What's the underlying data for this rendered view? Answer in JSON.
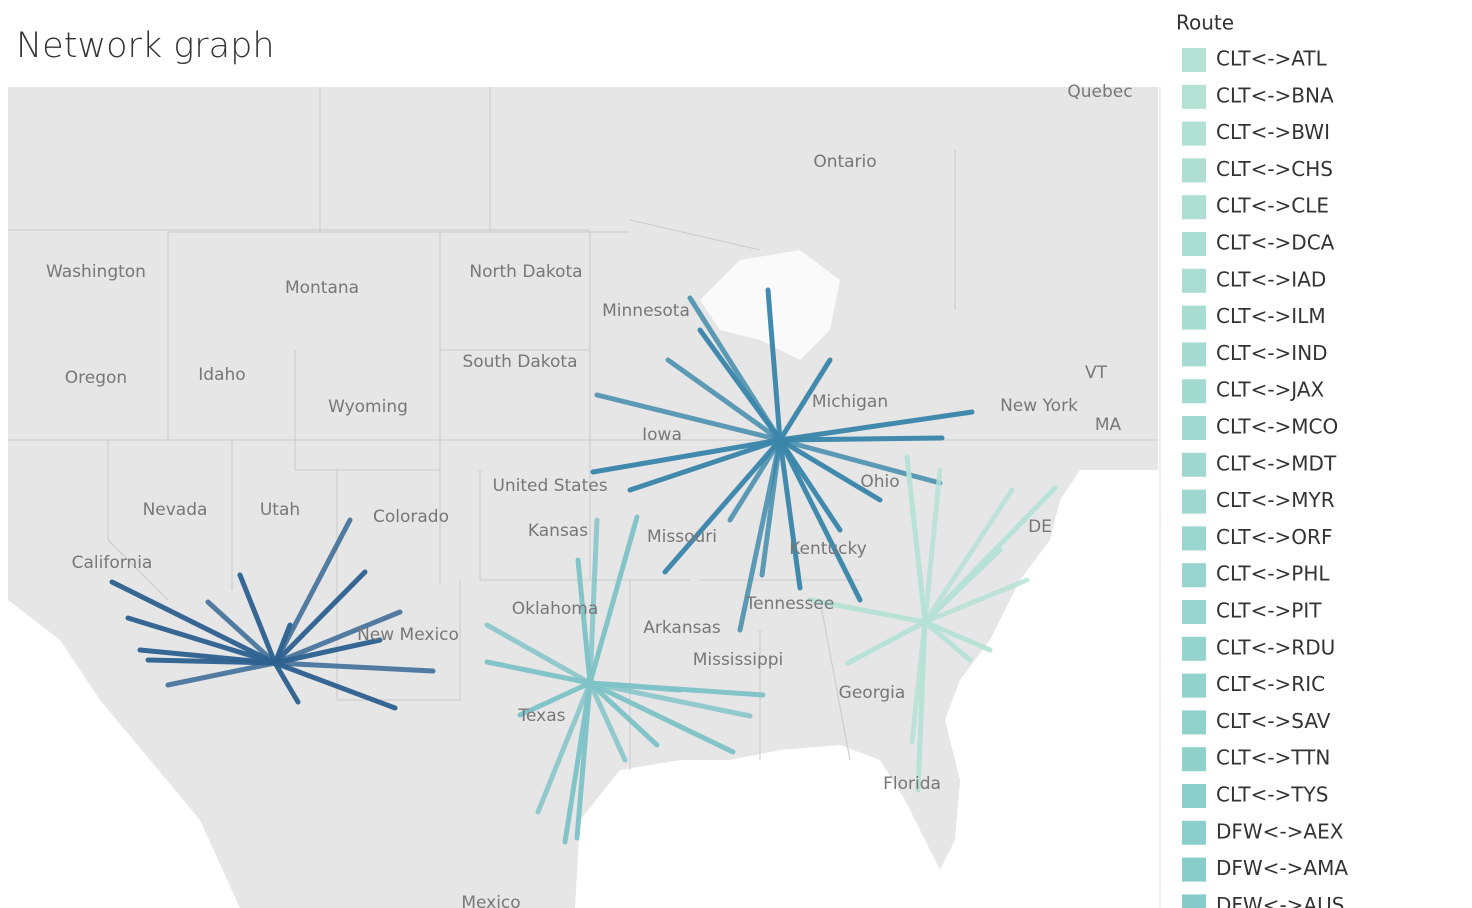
{
  "header": {
    "title": "Network graph"
  },
  "map": {
    "labels": [
      "Quebec",
      "Ontario",
      "Washington",
      "Montana",
      "North Dakota",
      "Minnesota",
      "South Dakota",
      "Oregon",
      "Idaho",
      "Wyoming",
      "Iowa",
      "United States",
      "Nevada",
      "Utah",
      "Colorado",
      "Kansas",
      "California",
      "Missouri",
      "Oklahoma",
      "Arkansas",
      "Mississippi",
      "New Mexico",
      "Texas",
      "Georgia",
      "Florida",
      "New York",
      "VT",
      "MA",
      "DE",
      "Michigan",
      "Ohio",
      "Tennessee",
      "Kentucky",
      "Mexico"
    ]
  },
  "legend": {
    "title": "Route",
    "items": [
      {
        "label": "CLT<->ATL",
        "color": "#b5e2d5"
      },
      {
        "label": "CLT<->BNA",
        "color": "#b3e1d4"
      },
      {
        "label": "CLT<->BWI",
        "color": "#b1e0d4"
      },
      {
        "label": "CLT<->CHS",
        "color": "#afdfd3"
      },
      {
        "label": "CLT<->CLE",
        "color": "#addfd3"
      },
      {
        "label": "CLT<->DCA",
        "color": "#abded2"
      },
      {
        "label": "CLT<->IAD",
        "color": "#a9ddd2"
      },
      {
        "label": "CLT<->ILM",
        "color": "#a7dcd1"
      },
      {
        "label": "CLT<->IND",
        "color": "#a5dbd1"
      },
      {
        "label": "CLT<->JAX",
        "color": "#a3dad0"
      },
      {
        "label": "CLT<->MCO",
        "color": "#a1d9d0"
      },
      {
        "label": "CLT<->MDT",
        "color": "#9fd8cf"
      },
      {
        "label": "CLT<->MYR",
        "color": "#9dd7cf"
      },
      {
        "label": "CLT<->ORF",
        "color": "#9bd6ce"
      },
      {
        "label": "CLT<->PHL",
        "color": "#99d5ce"
      },
      {
        "label": "CLT<->PIT",
        "color": "#97d4cd"
      },
      {
        "label": "CLT<->RDU",
        "color": "#95d3cd"
      },
      {
        "label": "CLT<->RIC",
        "color": "#93d2cc"
      },
      {
        "label": "CLT<->SAV",
        "color": "#91d1cc"
      },
      {
        "label": "CLT<->TTN",
        "color": "#8fd0cb"
      },
      {
        "label": "CLT<->TYS",
        "color": "#8dcfcb"
      },
      {
        "label": "DFW<->AEX",
        "color": "#8bcecb"
      },
      {
        "label": "DFW<->AMA",
        "color": "#89cdca"
      },
      {
        "label": "DFW<->AUS",
        "color": "#87ccca"
      }
    ]
  }
}
